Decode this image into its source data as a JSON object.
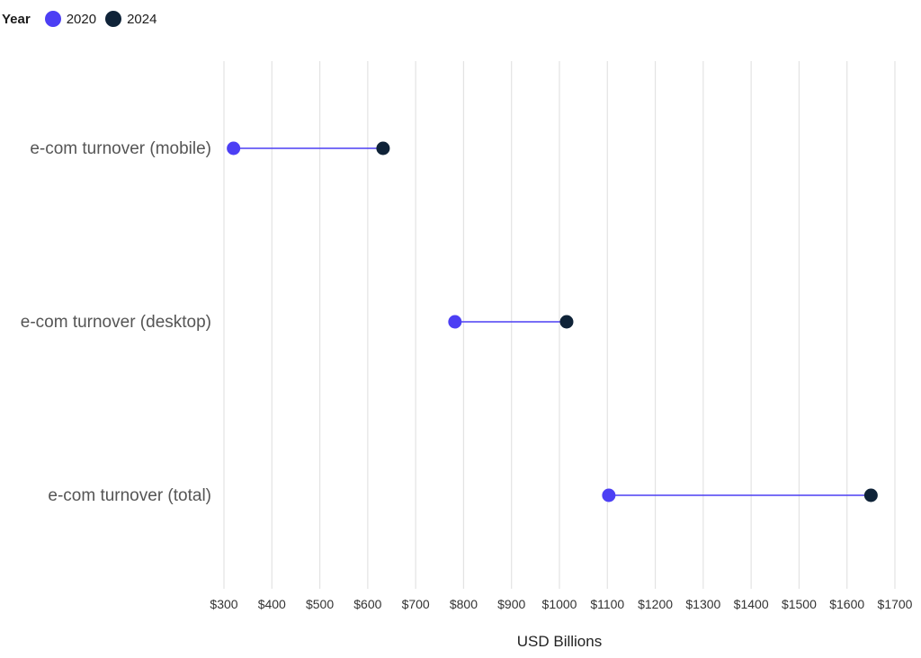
{
  "legend": {
    "title": "Year",
    "items": [
      {
        "label": "2020",
        "color": "#4c3ff4"
      },
      {
        "label": "2024",
        "color": "#0f2338"
      }
    ]
  },
  "chart_data": {
    "type": "dumbbell",
    "categories": [
      "e-com turnover (mobile)",
      "e-com turnover (desktop)",
      "e-com turnover (total)"
    ],
    "series": [
      {
        "name": "2020",
        "values": [
          320,
          782,
          1103
        ],
        "color": "#4c3ff4"
      },
      {
        "name": "2024",
        "values": [
          632,
          1015,
          1650
        ],
        "color": "#0f2338"
      }
    ],
    "xlabel": "USD Billions",
    "xlim": [
      300,
      1700
    ],
    "x_ticks": [
      "$300",
      "$400",
      "$500",
      "$600",
      "$700",
      "$800",
      "$900",
      "$1000",
      "$1100",
      "$1200",
      "$1300",
      "$1400",
      "$1500",
      "$1600",
      "$1700"
    ],
    "x_tick_values": [
      300,
      400,
      500,
      600,
      700,
      800,
      900,
      1000,
      1100,
      1200,
      1300,
      1400,
      1500,
      1600,
      1700
    ],
    "grid": "vertical",
    "legend_position": "top-left",
    "connector_color": "#4c3ff4"
  }
}
